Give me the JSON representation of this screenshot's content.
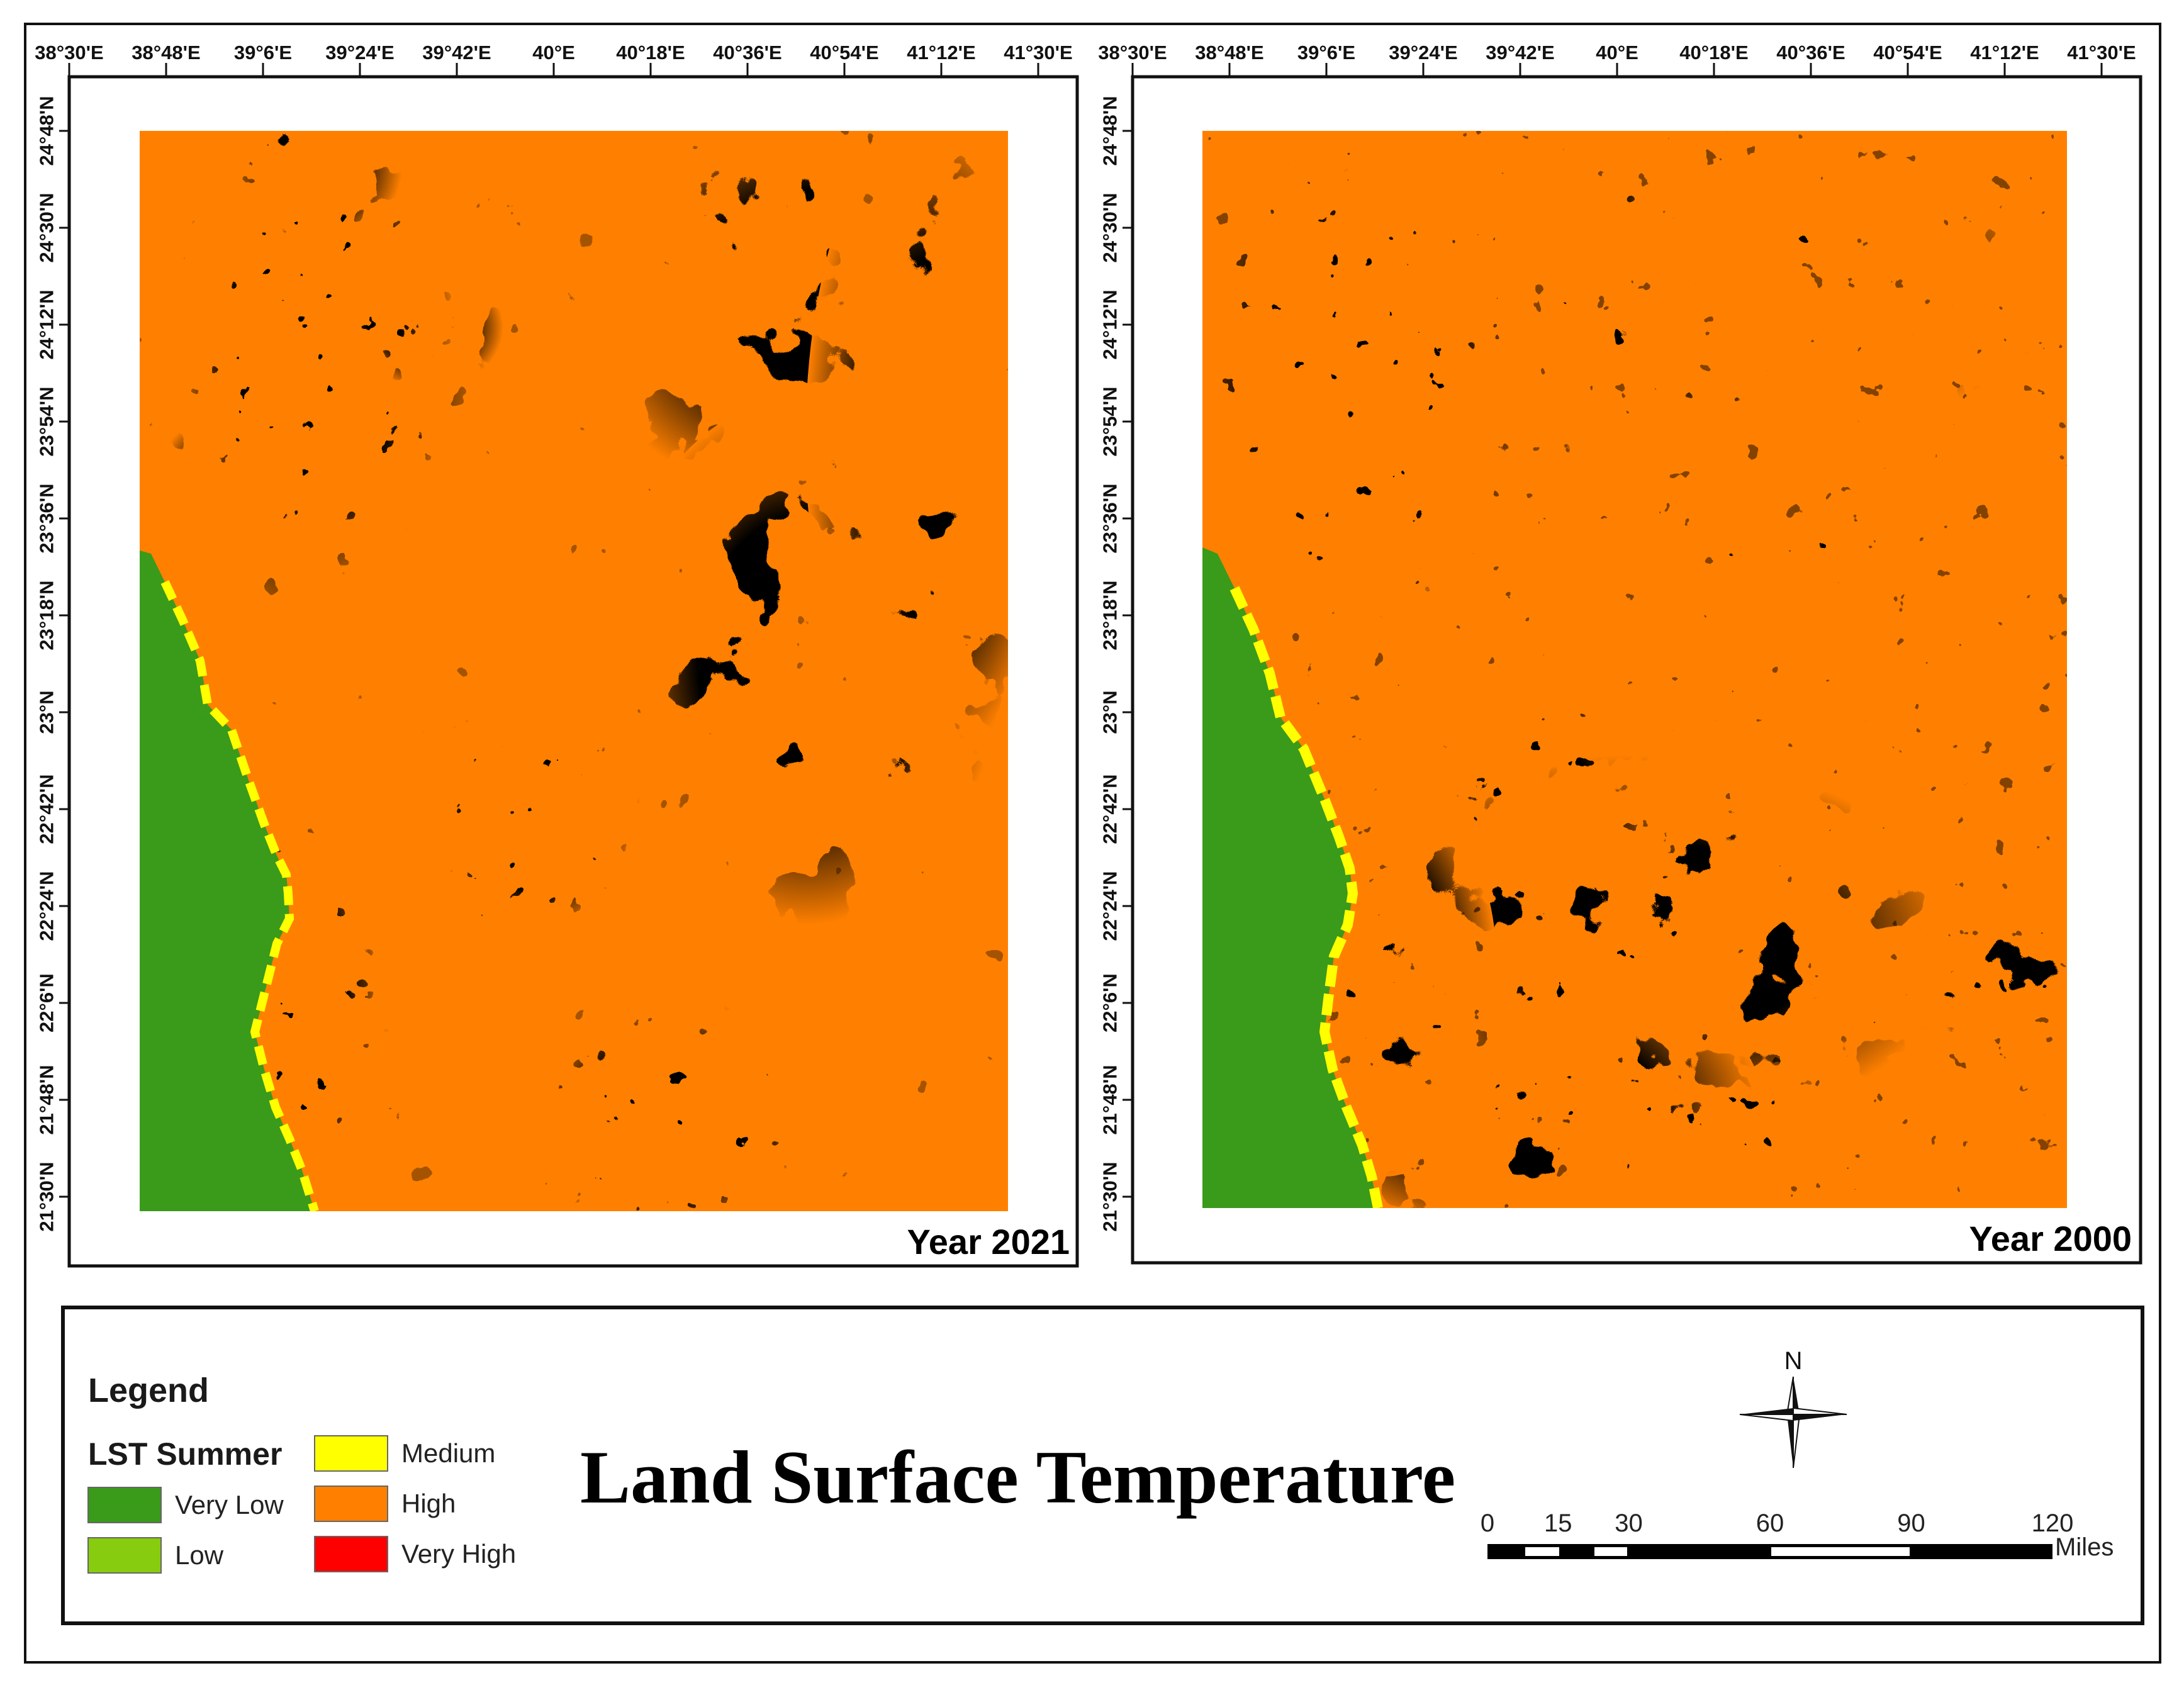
{
  "lon_ticks": [
    "38°30'E",
    "38°48'E",
    "39°6'E",
    "39°24'E",
    "39°42'E",
    "40°E",
    "40°18'E",
    "40°36'E",
    "40°54'E",
    "41°12'E",
    "41°30'E"
  ],
  "lat_ticks": [
    "24°48'N",
    "24°30'N",
    "24°12'N",
    "23°54'N",
    "23°36'N",
    "23°18'N",
    "23°N",
    "22°42'N",
    "22°24'N",
    "22°6'N",
    "21°48'N",
    "21°30'N"
  ],
  "panels": [
    {
      "year_label": "Year 2021"
    },
    {
      "year_label": "Year 2000"
    }
  ],
  "legend": {
    "title": "Legend",
    "subtitle": "LST Summer",
    "items": [
      {
        "label": "Very Low",
        "color": "#3a9a1a"
      },
      {
        "label": "Low",
        "color": "#88cc10"
      },
      {
        "label": "Medium",
        "color": "#ffff00"
      },
      {
        "label": "High",
        "color": "#ff8000"
      },
      {
        "label": "Very High",
        "color": "#ff0000"
      }
    ]
  },
  "main_title": "Land Surface Temperature",
  "north_label": "N",
  "scale": {
    "labels": [
      "0",
      "15",
      "30",
      "60",
      "90",
      "120"
    ],
    "unit": "Miles"
  }
}
